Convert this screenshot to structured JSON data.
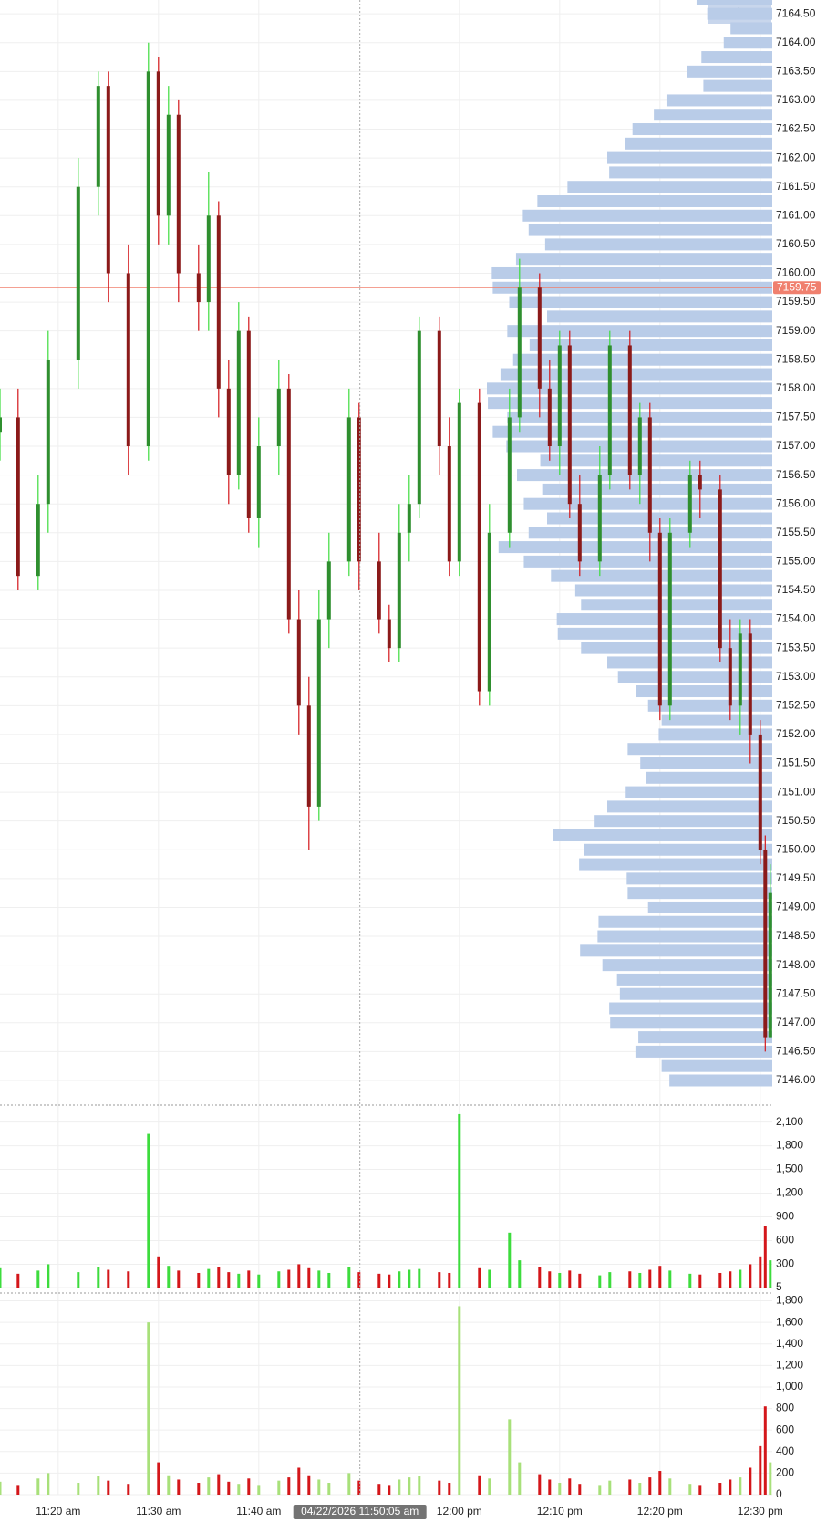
{
  "chart_data": {
    "type": "candlestick",
    "up_color": "#3ddc3d",
    "down_color": "#d4161a",
    "body_color_up": "#2f8f2f",
    "body_color_down": "#8b1a1a",
    "x": [
      14.2,
      16,
      18,
      19,
      22,
      24,
      25,
      27,
      29,
      30,
      31,
      32,
      34,
      35,
      36,
      37,
      38,
      39,
      40,
      42,
      43,
      44,
      45,
      46,
      47,
      49,
      50,
      52,
      53,
      54,
      55,
      56,
      58,
      59,
      60,
      62,
      63,
      65,
      66,
      68,
      69,
      70,
      71,
      72,
      74,
      75,
      77,
      78,
      79,
      80,
      81,
      83,
      84,
      86,
      87,
      88,
      89,
      90,
      90.5,
      91
    ],
    "open": [
      7157.25,
      7157.5,
      7154.75,
      7156,
      7158.5,
      7161.5,
      7163.25,
      7160,
      7157,
      7163.5,
      7161,
      7162.75,
      7160,
      7159.5,
      7161,
      7158,
      7156.5,
      7159,
      7155.75,
      7157,
      7158,
      7154,
      7152.5,
      7150.75,
      7154,
      7155,
      7157.5,
      7155,
      7154,
      7153.5,
      7155.5,
      7156,
      7159,
      7157,
      7155,
      7157.75,
      7152.75,
      7155.5,
      7157.5,
      7159.75,
      7158,
      7157,
      7158.75,
      7156,
      7155,
      7156.5,
      7158.75,
      7156.5,
      7157.5,
      7155.5,
      7152.5,
      7155.5,
      7156.5,
      7156.25,
      7153.5,
      7152.5,
      7153.75,
      7152,
      7150,
      7146.75
    ],
    "high": [
      7158,
      7158,
      7156.5,
      7159,
      7162,
      7163.5,
      7163.5,
      7160.5,
      7164,
      7163.75,
      7163.25,
      7163,
      7160.5,
      7161.75,
      7161.25,
      7158.5,
      7159.5,
      7159.25,
      7157.5,
      7158.5,
      7158.25,
      7154.5,
      7153,
      7154.5,
      7155.5,
      7158,
      7157.75,
      7155.5,
      7154.25,
      7156,
      7156.5,
      7159.25,
      7159.25,
      7157.5,
      7158,
      7158,
      7156,
      7158,
      7160.25,
      7160,
      7158.5,
      7159,
      7159,
      7156.5,
      7157,
      7159,
      7159,
      7157.75,
      7157.75,
      7155.75,
      7155.75,
      7156.75,
      7156.75,
      7156.5,
      7154,
      7154,
      7154,
      7152.25,
      7150.25,
      7149.75
    ],
    "low": [
      7156.75,
      7154.5,
      7154.5,
      7155.5,
      7158,
      7161,
      7159.5,
      7156.5,
      7156.75,
      7160.5,
      7160.5,
      7159.5,
      7159,
      7159,
      7157.5,
      7156,
      7156.25,
      7155.5,
      7155.25,
      7156.5,
      7153.75,
      7152,
      7150,
      7150.5,
      7153.5,
      7154.75,
      7154.5,
      7153.75,
      7153.25,
      7153.25,
      7155,
      7155.75,
      7156.5,
      7154.75,
      7154.75,
      7152.5,
      7152.5,
      7155.25,
      7157.25,
      7157.5,
      7156.75,
      7156.5,
      7155.75,
      7154.75,
      7154.75,
      7156.25,
      7156.25,
      7156,
      7155,
      7152.25,
      7152.25,
      7155.25,
      7155.75,
      7153.25,
      7152.25,
      7152,
      7151.5,
      7149.75,
      7146.5,
      7146.75
    ],
    "close": [
      7157.5,
      7154.75,
      7156,
      7158.5,
      7161.5,
      7163.25,
      7160,
      7157,
      7163.5,
      7161,
      7162.75,
      7160,
      7159.5,
      7161,
      7158,
      7156.5,
      7159,
      7155.75,
      7157,
      7158,
      7154,
      7152.5,
      7150.75,
      7154,
      7155,
      7157.5,
      7155,
      7154,
      7153.5,
      7155.5,
      7156,
      7159,
      7157,
      7155,
      7157.75,
      7152.75,
      7155.5,
      7157.5,
      7159.75,
      7158,
      7157,
      7158.75,
      7156,
      7155,
      7156.5,
      7158.75,
      7156.5,
      7157.5,
      7155.5,
      7152.5,
      7155.5,
      7156.5,
      7156.25,
      7153.5,
      7152.5,
      7153.75,
      7152,
      7150,
      7146.75,
      7149.25
    ],
    "xlim": [
      14.2,
      91.2
    ],
    "xticks": [
      {
        "value": 20,
        "label": "11:20 am"
      },
      {
        "value": 30,
        "label": "11:30 am"
      },
      {
        "value": 40,
        "label": "11:40 am"
      },
      {
        "value": 60,
        "label": "12:00 pm"
      },
      {
        "value": 70,
        "label": "12:10 pm"
      },
      {
        "value": 80,
        "label": "12:20 pm"
      },
      {
        "value": 90,
        "label": "12:30 pm"
      }
    ],
    "crosshair": {
      "value": 50.08,
      "label": "04/22/2026 11:50:05 am"
    },
    "ylim": [
      7164.74,
      7145.62
    ],
    "yticks": [
      {
        "value": 7164.5,
        "label": "7164.50"
      },
      {
        "value": 7164,
        "label": "7164.00"
      },
      {
        "value": 7163.5,
        "label": "7163.50"
      },
      {
        "value": 7163,
        "label": "7163.00"
      },
      {
        "value": 7162.5,
        "label": "7162.50"
      },
      {
        "value": 7162,
        "label": "7162.00"
      },
      {
        "value": 7161.5,
        "label": "7161.50"
      },
      {
        "value": 7161,
        "label": "7161.00"
      },
      {
        "value": 7160.5,
        "label": "7160.50"
      },
      {
        "value": 7160,
        "label": "7160.00"
      },
      {
        "value": 7159.5,
        "label": "7159.50"
      },
      {
        "value": 7159,
        "label": "7159.00"
      },
      {
        "value": 7158.5,
        "label": "7158.50"
      },
      {
        "value": 7158,
        "label": "7158.00"
      },
      {
        "value": 7157.5,
        "label": "7157.50"
      },
      {
        "value": 7157,
        "label": "7157.00"
      },
      {
        "value": 7156.5,
        "label": "7156.50"
      },
      {
        "value": 7156,
        "label": "7156.00"
      },
      {
        "value": 7155.5,
        "label": "7155.50"
      },
      {
        "value": 7155,
        "label": "7155.00"
      },
      {
        "value": 7154.5,
        "label": "7154.50"
      },
      {
        "value": 7154,
        "label": "7154.00"
      },
      {
        "value": 7153.5,
        "label": "7153.50"
      },
      {
        "value": 7153,
        "label": "7153.00"
      },
      {
        "value": 7152.5,
        "label": "7152.50"
      },
      {
        "value": 7152,
        "label": "7152.00"
      },
      {
        "value": 7151.5,
        "label": "7151.50"
      },
      {
        "value": 7151,
        "label": "7151.00"
      },
      {
        "value": 7150.5,
        "label": "7150.50"
      },
      {
        "value": 7150,
        "label": "7150.00"
      },
      {
        "value": 7149.5,
        "label": "7149.50"
      },
      {
        "value": 7149,
        "label": "7149.00"
      },
      {
        "value": 7148.5,
        "label": "7148.50"
      },
      {
        "value": 7148,
        "label": "7148.00"
      },
      {
        "value": 7147.5,
        "label": "7147.50"
      },
      {
        "value": 7147,
        "label": "7147.00"
      },
      {
        "value": 7146.5,
        "label": "7146.50"
      },
      {
        "value": 7146,
        "label": "7146.00"
      }
    ],
    "price_line": {
      "value": 7159.75,
      "label": "7159.75",
      "color": "#f0806e"
    },
    "volume_profile": {
      "color": "#b9cce8",
      "prices": [
        7164.75,
        7164.5,
        7164.25,
        7164,
        7163.75,
        7163.5,
        7163.25,
        7163,
        7162.75,
        7162.5,
        7162.25,
        7162,
        7161.75,
        7161.5,
        7161.25,
        7161,
        7160.75,
        7160.5,
        7160.25,
        7160,
        7159.75,
        7159.5,
        7159.25,
        7159,
        7158.75,
        7158.5,
        7158.25,
        7158,
        7157.75,
        7157.5,
        7157.25,
        7157,
        7156.75,
        7156.5,
        7156.25,
        7156,
        7155.75,
        7155.5,
        7155.25,
        7155,
        7154.75,
        7154.5,
        7154.25,
        7154,
        7153.75,
        7153.5,
        7153.25,
        7153,
        7152.75,
        7152.5,
        7152.25,
        7152,
        7151.75,
        7151.5,
        7151.25,
        7151,
        7150.75,
        7150.5,
        7150.25,
        7150,
        7149.75,
        7149.5,
        7149.25,
        7149,
        7148.75,
        7148.5,
        7148.25,
        7148,
        7147.75,
        7147.5,
        7147.25,
        7147,
        7146.75,
        7146.5,
        7146.25,
        7146
      ],
      "values": [
        78,
        67,
        43,
        50,
        73,
        88,
        71,
        109,
        122,
        144,
        152,
        170,
        168,
        211,
        242,
        257,
        251,
        234,
        264,
        289,
        288,
        271,
        232,
        273,
        250,
        267,
        280,
        294,
        293,
        273,
        288,
        274,
        239,
        263,
        237,
        256,
        232,
        251,
        282,
        256,
        228,
        203,
        197,
        222,
        221,
        197,
        170,
        159,
        140,
        128,
        114,
        117,
        149,
        136,
        130,
        151,
        170,
        183,
        226,
        194,
        199,
        150,
        149,
        128,
        179,
        180,
        198,
        175,
        160,
        157,
        168,
        167,
        138,
        141,
        114,
        106
      ]
    },
    "volume": {
      "type": "bar",
      "values": [
        250,
        180,
        220,
        300,
        200,
        260,
        230,
        210,
        1950,
        400,
        280,
        220,
        190,
        240,
        260,
        200,
        180,
        220,
        170,
        210,
        230,
        300,
        250,
        220,
        190,
        260,
        200,
        180,
        170,
        210,
        230,
        240,
        200,
        190,
        2200,
        250,
        230,
        700,
        350,
        260,
        210,
        190,
        220,
        180,
        160,
        200,
        210,
        190,
        230,
        280,
        220,
        180,
        170,
        190,
        210,
        230,
        300,
        400,
        780,
        350
      ],
      "ylim": [
        5,
        2280
      ],
      "yticks": [
        5,
        300,
        600,
        900,
        {
          "value": 1200,
          "label": "1,200"
        },
        {
          "value": 1500,
          "label": "1,500"
        },
        {
          "value": 1800,
          "label": "1,800"
        },
        {
          "value": 2100,
          "label": "2,100"
        }
      ]
    },
    "volume2": {
      "type": "bar",
      "up_color": "#a8e07a",
      "values": [
        120,
        90,
        150,
        200,
        110,
        170,
        130,
        100,
        1600,
        300,
        180,
        140,
        110,
        160,
        190,
        120,
        100,
        150,
        90,
        130,
        160,
        250,
        180,
        140,
        110,
        200,
        130,
        100,
        90,
        140,
        160,
        170,
        130,
        110,
        1750,
        180,
        150,
        700,
        300,
        190,
        140,
        110,
        150,
        100,
        90,
        130,
        140,
        110,
        160,
        220,
        150,
        100,
        90,
        110,
        140,
        160,
        250,
        450,
        820,
        300
      ],
      "ylim": [
        0,
        1830
      ],
      "yticks": [
        0,
        200,
        400,
        600,
        800,
        {
          "value": 1000,
          "label": "1,000"
        },
        {
          "value": 1200,
          "label": "1,200"
        },
        {
          "value": 1400,
          "label": "1,400"
        },
        {
          "value": 1600,
          "label": "1,600"
        },
        {
          "value": 1800,
          "label": "1,800"
        }
      ]
    }
  }
}
